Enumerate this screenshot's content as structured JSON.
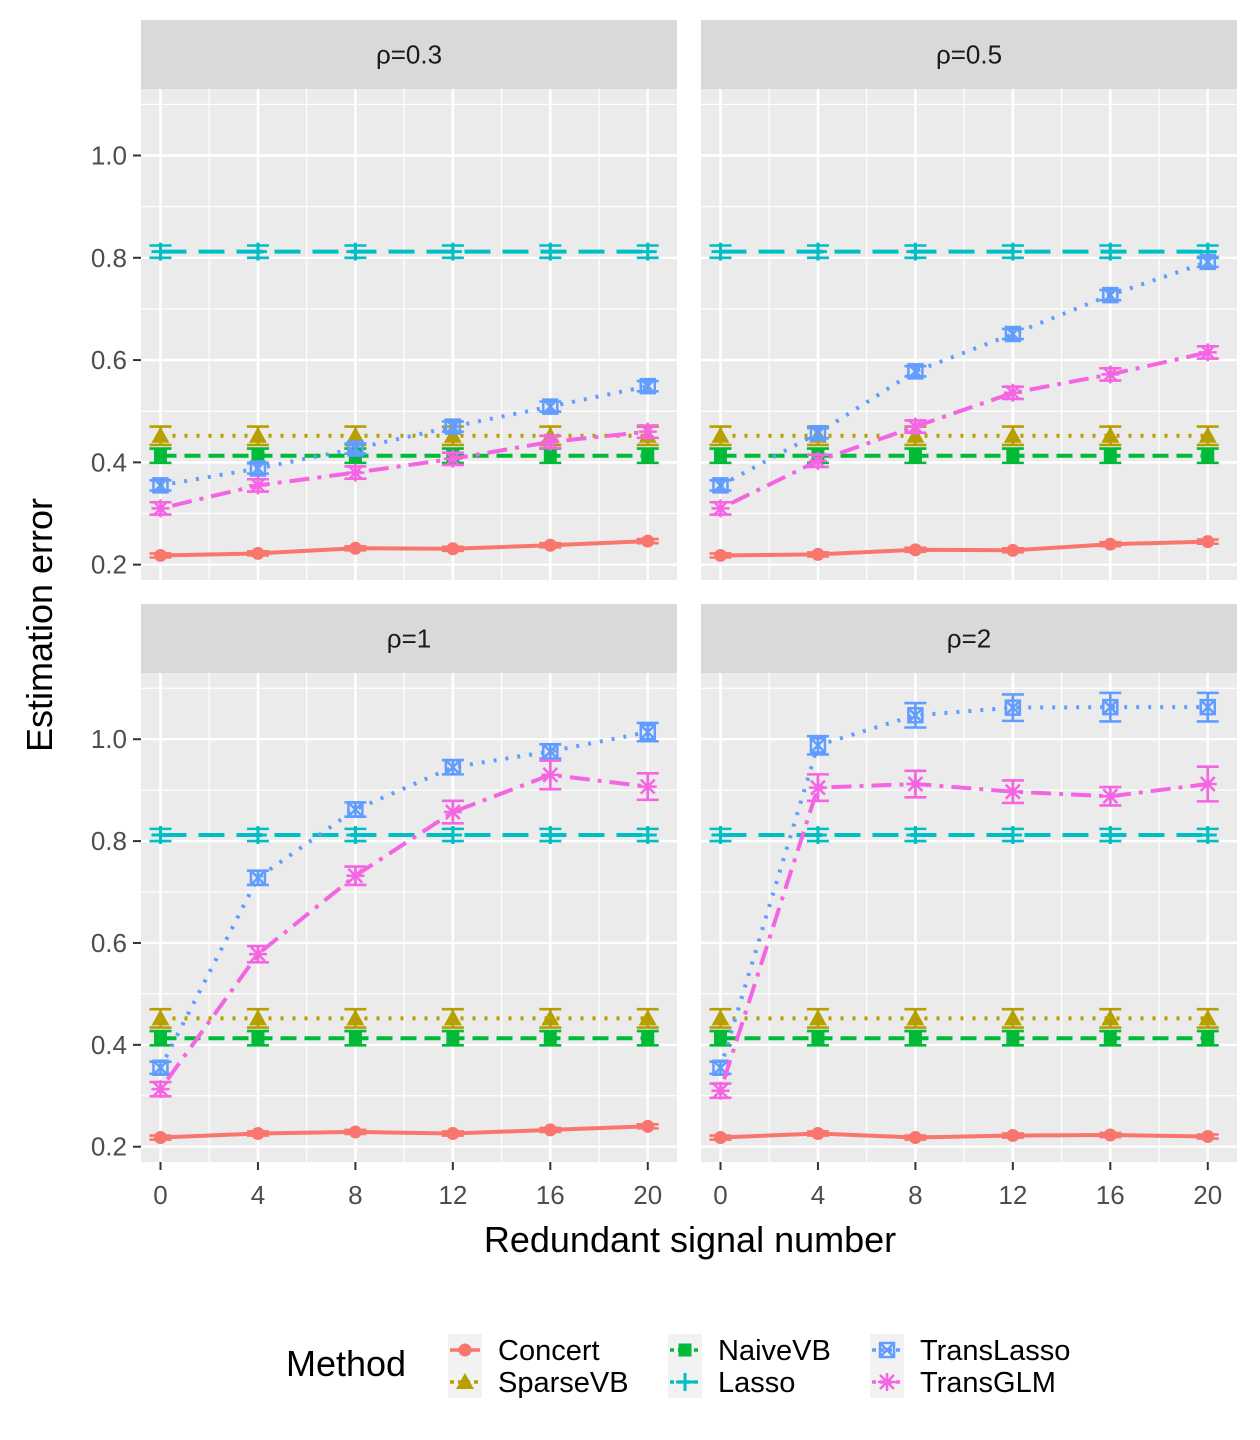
{
  "chart_data": {
    "type": "line",
    "xlabel": "Redundant signal number",
    "ylabel": "Estimation error",
    "x": [
      0,
      4,
      8,
      12,
      16,
      20
    ],
    "x_ticks": [
      "0",
      "4",
      "8",
      "12",
      "16",
      "20"
    ],
    "ylim": [
      0.17,
      1.13
    ],
    "y_ticks": [
      "0.2",
      "0.4",
      "0.6",
      "0.8",
      "1.0"
    ],
    "legend": {
      "title": "Method",
      "position": "bottom",
      "items": [
        {
          "name": "Concert",
          "color": "#F8766D",
          "shape": "circle",
          "dash": "solid"
        },
        {
          "name": "SparseVB",
          "color": "#B79F00",
          "shape": "triangle",
          "dash": "dotted"
        },
        {
          "name": "NaiveVB",
          "color": "#00BA38",
          "shape": "square",
          "dash": "dashed"
        },
        {
          "name": "Lasso",
          "color": "#00BFC4",
          "shape": "plus",
          "dash": "longdash"
        },
        {
          "name": "TransLasso",
          "color": "#619CFF",
          "shape": "boxx",
          "dash": "dotted"
        },
        {
          "name": "TransGLM",
          "color": "#F564E3",
          "shape": "asterisk",
          "dash": "dotdash"
        }
      ]
    },
    "panels": [
      {
        "label": "ρ=0.3",
        "series": [
          {
            "name": "Concert",
            "values": [
              0.218,
              0.222,
              0.232,
              0.231,
              0.238,
              0.246
            ],
            "err": [
              0.004,
              0.004,
              0.004,
              0.004,
              0.004,
              0.004
            ]
          },
          {
            "name": "SparseVB",
            "values": [
              0.452,
              0.452,
              0.452,
              0.452,
              0.452,
              0.452
            ],
            "err": [
              0.018,
              0.018,
              0.018,
              0.018,
              0.018,
              0.018
            ]
          },
          {
            "name": "NaiveVB",
            "values": [
              0.413,
              0.413,
              0.413,
              0.413,
              0.413,
              0.413
            ],
            "err": [
              0.014,
              0.014,
              0.014,
              0.014,
              0.014,
              0.014
            ]
          },
          {
            "name": "Lasso",
            "values": [
              0.812,
              0.812,
              0.812,
              0.812,
              0.812,
              0.812
            ],
            "err": [
              0.012,
              0.012,
              0.012,
              0.012,
              0.012,
              0.012
            ]
          },
          {
            "name": "TransLasso",
            "values": [
              0.355,
              0.388,
              0.427,
              0.47,
              0.509,
              0.549
            ],
            "err": [
              0.01,
              0.01,
              0.01,
              0.01,
              0.01,
              0.01
            ]
          },
          {
            "name": "TransGLM",
            "values": [
              0.31,
              0.355,
              0.38,
              0.407,
              0.44,
              0.46
            ],
            "err": [
              0.012,
              0.012,
              0.012,
              0.012,
              0.012,
              0.012
            ]
          }
        ]
      },
      {
        "label": "ρ=0.5",
        "series": [
          {
            "name": "Concert",
            "values": [
              0.218,
              0.22,
              0.229,
              0.228,
              0.24,
              0.245
            ],
            "err": [
              0.004,
              0.004,
              0.004,
              0.004,
              0.004,
              0.004
            ]
          },
          {
            "name": "SparseVB",
            "values": [
              0.452,
              0.452,
              0.452,
              0.452,
              0.452,
              0.452
            ],
            "err": [
              0.018,
              0.018,
              0.018,
              0.018,
              0.018,
              0.018
            ]
          },
          {
            "name": "NaiveVB",
            "values": [
              0.413,
              0.413,
              0.413,
              0.413,
              0.413,
              0.413
            ],
            "err": [
              0.014,
              0.014,
              0.014,
              0.014,
              0.014,
              0.014
            ]
          },
          {
            "name": "Lasso",
            "values": [
              0.812,
              0.812,
              0.812,
              0.812,
              0.812,
              0.812
            ],
            "err": [
              0.012,
              0.012,
              0.012,
              0.012,
              0.012,
              0.012
            ]
          },
          {
            "name": "TransLasso",
            "values": [
              0.355,
              0.457,
              0.578,
              0.651,
              0.727,
              0.792
            ],
            "err": [
              0.01,
              0.01,
              0.01,
              0.01,
              0.01,
              0.01
            ]
          },
          {
            "name": "TransGLM",
            "values": [
              0.31,
              0.403,
              0.47,
              0.536,
              0.572,
              0.615
            ],
            "err": [
              0.012,
              0.012,
              0.012,
              0.012,
              0.012,
              0.012
            ]
          }
        ]
      },
      {
        "label": "ρ=1",
        "series": [
          {
            "name": "Concert",
            "values": [
              0.218,
              0.226,
              0.229,
              0.226,
              0.233,
              0.24
            ],
            "err": [
              0.004,
              0.004,
              0.004,
              0.004,
              0.004,
              0.004
            ]
          },
          {
            "name": "SparseVB",
            "values": [
              0.452,
              0.452,
              0.452,
              0.452,
              0.452,
              0.452
            ],
            "err": [
              0.018,
              0.018,
              0.018,
              0.018,
              0.018,
              0.018
            ]
          },
          {
            "name": "NaiveVB",
            "values": [
              0.413,
              0.413,
              0.413,
              0.413,
              0.413,
              0.413
            ],
            "err": [
              0.014,
              0.014,
              0.014,
              0.014,
              0.014,
              0.014
            ]
          },
          {
            "name": "Lasso",
            "values": [
              0.812,
              0.812,
              0.812,
              0.812,
              0.812,
              0.812
            ],
            "err": [
              0.012,
              0.012,
              0.012,
              0.012,
              0.012,
              0.012
            ]
          },
          {
            "name": "TransLasso",
            "values": [
              0.355,
              0.728,
              0.862,
              0.945,
              0.976,
              1.014
            ],
            "err": [
              0.012,
              0.014,
              0.014,
              0.014,
              0.014,
              0.018
            ]
          },
          {
            "name": "TransGLM",
            "values": [
              0.313,
              0.578,
              0.732,
              0.857,
              0.93,
              0.907
            ],
            "err": [
              0.014,
              0.016,
              0.018,
              0.022,
              0.028,
              0.026
            ]
          }
        ]
      },
      {
        "label": "ρ=2",
        "series": [
          {
            "name": "Concert",
            "values": [
              0.218,
              0.226,
              0.218,
              0.222,
              0.223,
              0.22
            ],
            "err": [
              0.004,
              0.004,
              0.004,
              0.004,
              0.004,
              0.004
            ]
          },
          {
            "name": "SparseVB",
            "values": [
              0.452,
              0.452,
              0.452,
              0.452,
              0.452,
              0.452
            ],
            "err": [
              0.018,
              0.018,
              0.018,
              0.018,
              0.018,
              0.018
            ]
          },
          {
            "name": "NaiveVB",
            "values": [
              0.413,
              0.413,
              0.413,
              0.413,
              0.413,
              0.413
            ],
            "err": [
              0.014,
              0.014,
              0.014,
              0.014,
              0.014,
              0.014
            ]
          },
          {
            "name": "Lasso",
            "values": [
              0.812,
              0.812,
              0.812,
              0.812,
              0.812,
              0.812
            ],
            "err": [
              0.012,
              0.012,
              0.012,
              0.012,
              0.012,
              0.012
            ]
          },
          {
            "name": "TransLasso",
            "values": [
              0.355,
              0.988,
              1.047,
              1.062,
              1.063,
              1.063
            ],
            "err": [
              0.012,
              0.018,
              0.024,
              0.026,
              0.028,
              0.028
            ]
          },
          {
            "name": "TransGLM",
            "values": [
              0.31,
              0.905,
              0.912,
              0.897,
              0.888,
              0.912
            ],
            "err": [
              0.014,
              0.026,
              0.026,
              0.022,
              0.018,
              0.034
            ]
          }
        ]
      }
    ]
  }
}
